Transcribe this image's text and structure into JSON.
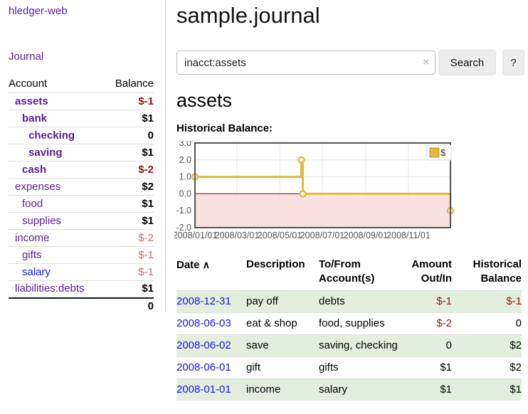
{
  "colors": {
    "accent_purple": "#571c9d",
    "link_blue": "#1616ec",
    "negative_dark": "#991111",
    "negative_soft": "#bf7171",
    "row_green": "#e3efdd"
  },
  "sidebar": {
    "brand": "hledger-web",
    "journal_link": "Journal",
    "accounts_table": {
      "header_account": "Account",
      "header_balance": "Balance",
      "rows": [
        {
          "name": "assets",
          "balance": "$-1"
        },
        {
          "name": "bank",
          "balance": "$1"
        },
        {
          "name": "checking",
          "balance": "0"
        },
        {
          "name": "saving",
          "balance": "$1"
        },
        {
          "name": "cash",
          "balance": "$-2"
        },
        {
          "name": "expenses",
          "balance": "$2"
        },
        {
          "name": "food",
          "balance": "$1"
        },
        {
          "name": "supplies",
          "balance": "$1"
        },
        {
          "name": "income",
          "balance": "$-2"
        },
        {
          "name": "gifts",
          "balance": "$-1"
        },
        {
          "name": "salary",
          "balance": "$-1"
        },
        {
          "name": "liabilities:debts",
          "balance": "$1"
        }
      ],
      "total": "0"
    }
  },
  "header": {
    "title": "sample.journal"
  },
  "search": {
    "value": "inacct:assets",
    "clear_icon": "×",
    "button_label": "Search",
    "help_label": "?"
  },
  "main": {
    "account_heading": "assets",
    "chart_heading": "Historical Balance:"
  },
  "chart_data": {
    "type": "line",
    "style": "step",
    "title": "Historical Balance",
    "legend": "$",
    "ylim": [
      -2,
      3
    ],
    "y_ticks": [
      {
        "v": 3,
        "label": "3.0"
      },
      {
        "v": 2,
        "label": "2.0"
      },
      {
        "v": 1,
        "label": "1.0"
      },
      {
        "v": 0,
        "label": "0.0"
      },
      {
        "v": -1,
        "label": "-1.0"
      },
      {
        "v": -2,
        "label": "-2.0"
      }
    ],
    "x_ticks": [
      {
        "day": 0,
        "label": "2008/01/01"
      },
      {
        "day": 60,
        "label": "2008/03/01"
      },
      {
        "day": 121,
        "label": "2008/05/01"
      },
      {
        "day": 182,
        "label": "2008/07/01"
      },
      {
        "day": 244,
        "label": "2008/09/01"
      },
      {
        "day": 305,
        "label": "2008/11/01"
      }
    ],
    "points": [
      {
        "date": "2008-01-01",
        "day": 0,
        "value": 1
      },
      {
        "date": "2008-06-01",
        "day": 152,
        "value": 2
      },
      {
        "date": "2008-06-03",
        "day": 154,
        "value": 0
      },
      {
        "date": "2008-12-31",
        "day": 365,
        "value": -1
      }
    ],
    "colors": {
      "line": "#e3b93c",
      "marker_fill": "#ffffff",
      "negative_fill": "#f9d9d9",
      "zero_line": "#8b0000",
      "border": "#545454",
      "grid": "#e8e8e8"
    }
  },
  "register_table": {
    "headers": [
      {
        "l1": "Date",
        "l2": "",
        "sort": "∧"
      },
      {
        "l1": "Description",
        "l2": ""
      },
      {
        "l1": "To/From",
        "l2": "Account(s)"
      },
      {
        "l1": "Amount",
        "l2": "Out/In"
      },
      {
        "l1": "Historical",
        "l2": "Balance"
      }
    ],
    "rows": [
      {
        "date": "2008-12-31",
        "description": "pay off",
        "accounts": "debts",
        "amount": "$-1",
        "balance": "$-1"
      },
      {
        "date": "2008-06-03",
        "description": "eat & shop",
        "accounts": "food, supplies",
        "amount": "$-2",
        "balance": "0"
      },
      {
        "date": "2008-06-02",
        "description": "save",
        "accounts": "saving, checking",
        "amount": "0",
        "balance": "$2"
      },
      {
        "date": "2008-06-01",
        "description": "gift",
        "accounts": "gifts",
        "amount": "$1",
        "balance": "$2"
      },
      {
        "date": "2008-01-01",
        "description": "income",
        "accounts": "salary",
        "amount": "$1",
        "balance": "$1"
      }
    ]
  }
}
